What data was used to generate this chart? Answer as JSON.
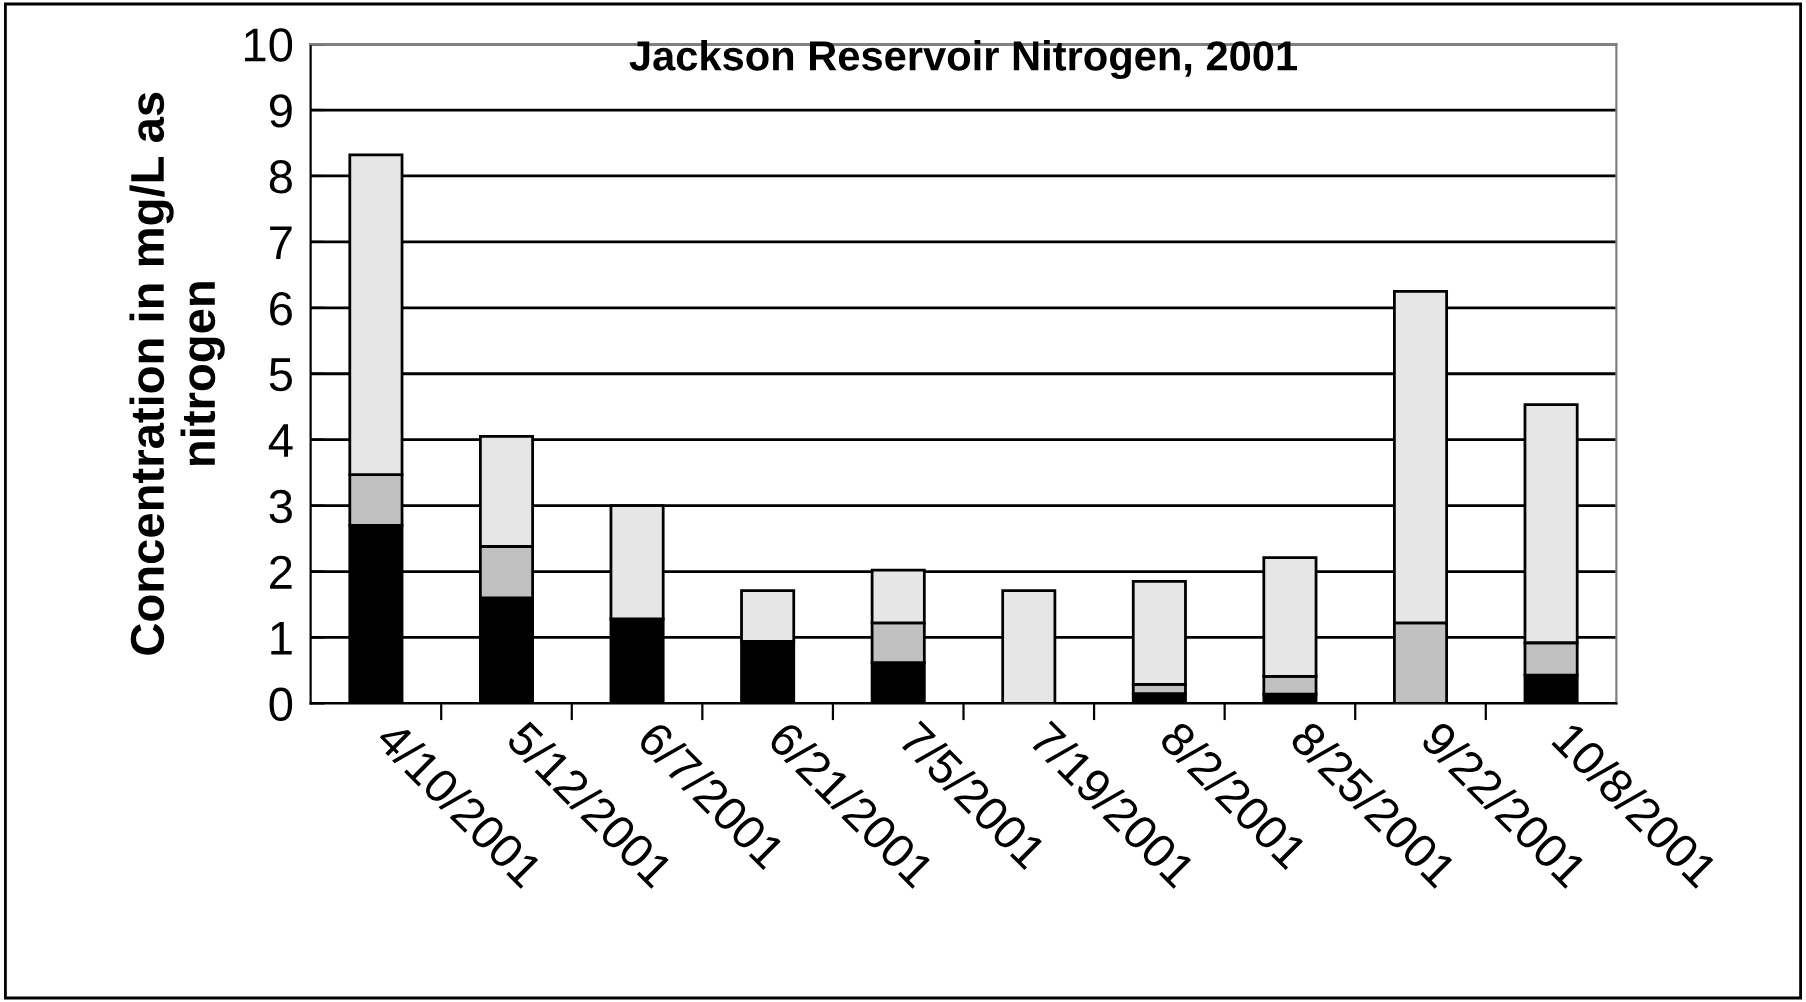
{
  "chart_data": {
    "type": "bar",
    "title": "Jackson Reservoir Nitrogen, 2001",
    "ylabel": "Concentration in mg/L as\nnitrogen",
    "categories": [
      "4/10/2001",
      "5/12/2001",
      "6/7/2001",
      "6/21/2001",
      "7/5/2001",
      "7/19/2001",
      "8/2/2001",
      "8/25/2001",
      "9/22/2001",
      "10/8/2001"
    ],
    "stacked": true,
    "series": [
      {
        "color": "#000000",
        "values": [
          2.7,
          1.6,
          1.28,
          0.94,
          0.62,
          0,
          0.15,
          0.14,
          0,
          0.43
        ]
      },
      {
        "color": "#c0c0c0",
        "values": [
          0.77,
          0.78,
          0,
          0,
          0.6,
          0,
          0.14,
          0.27,
          1.22,
          0.49
        ]
      },
      {
        "color": "#e6e6e6",
        "values": [
          4.85,
          1.67,
          1.72,
          0.77,
          0.8,
          1.71,
          1.56,
          1.8,
          5.03,
          3.61
        ]
      }
    ],
    "ylim": [
      0,
      10
    ],
    "yticks": [
      0,
      1,
      2,
      3,
      4,
      5,
      6,
      7,
      8,
      9,
      10
    ],
    "grid": "y",
    "legend": false
  }
}
